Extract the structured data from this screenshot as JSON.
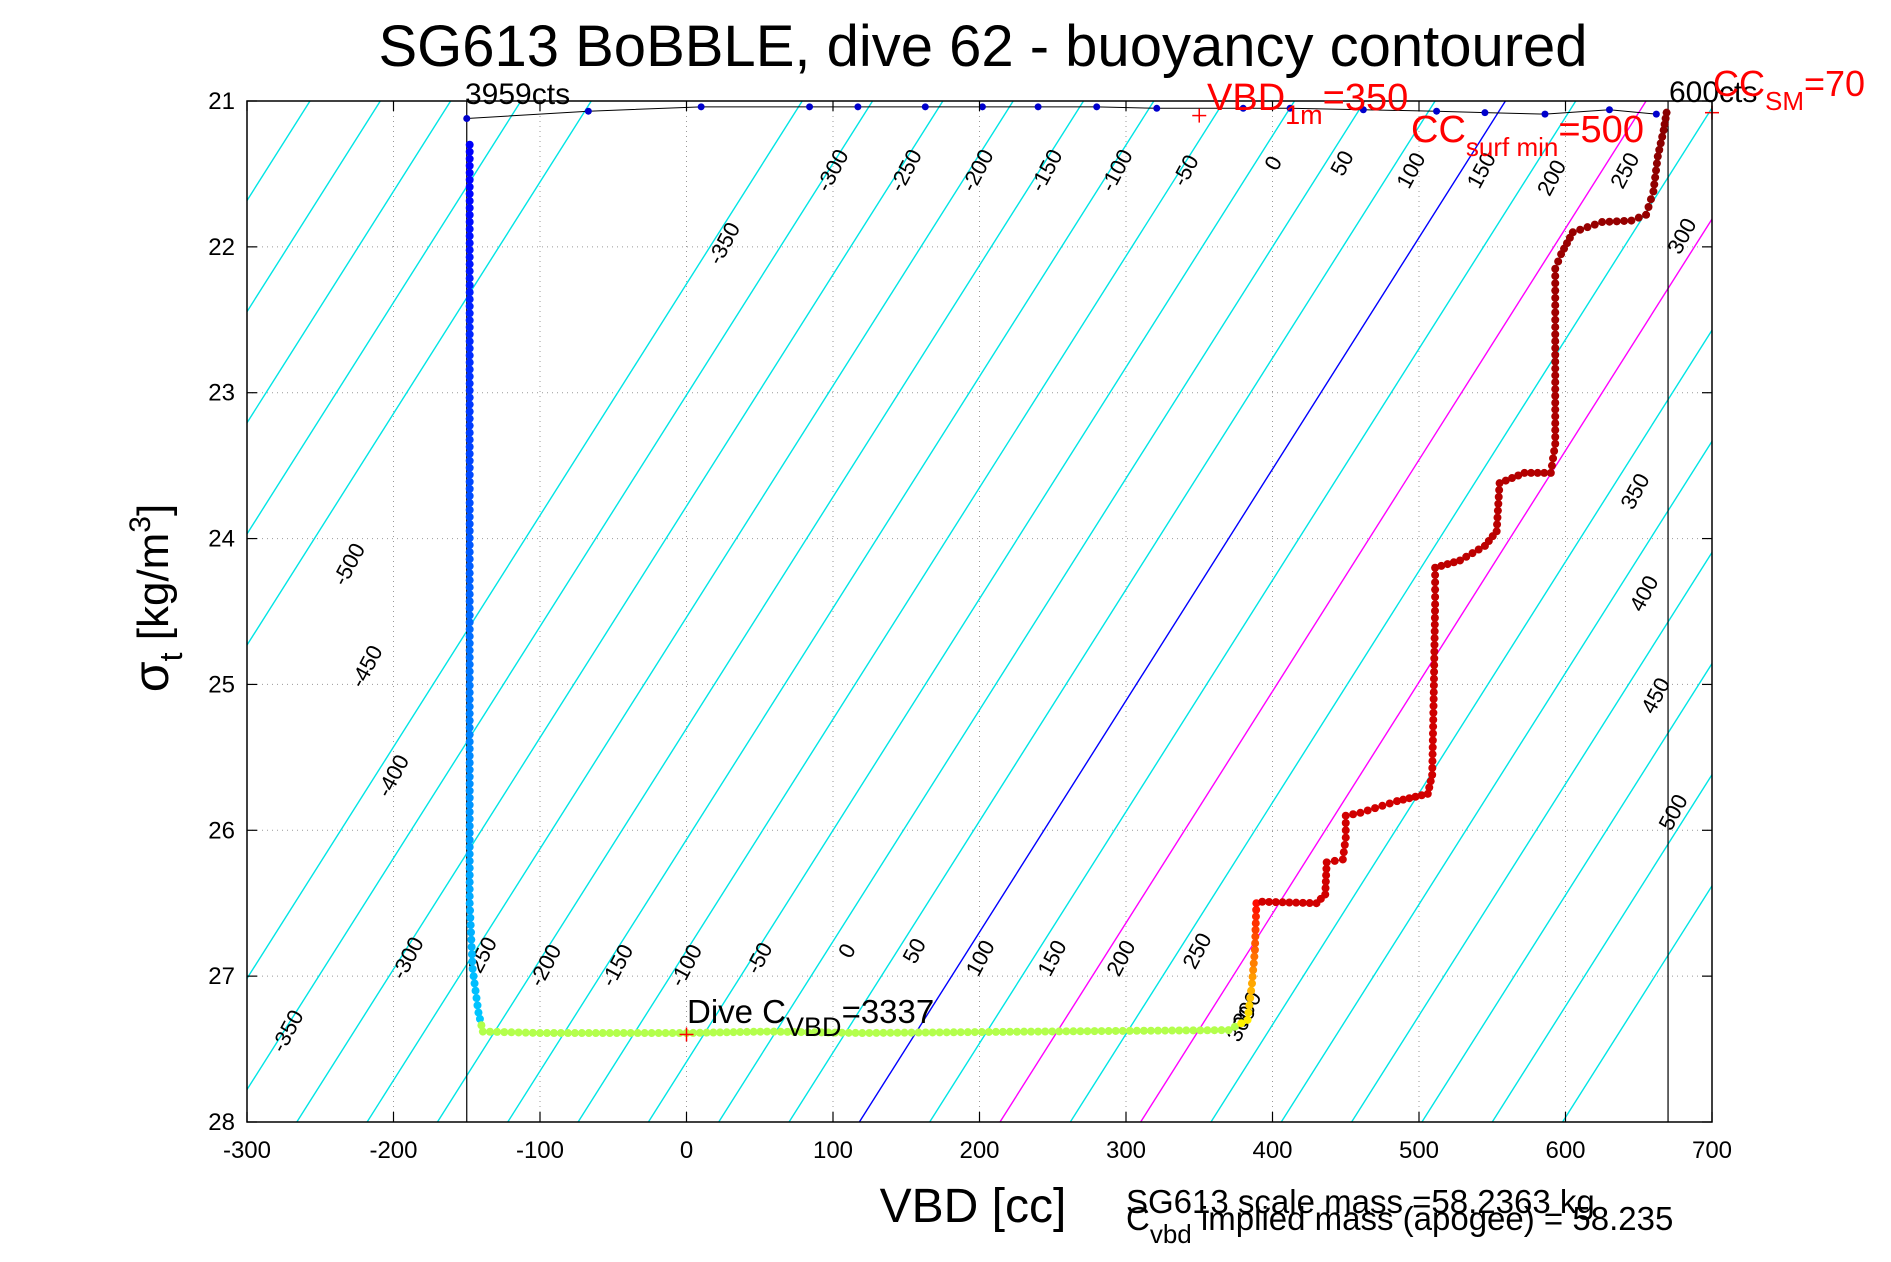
{
  "chart_data": {
    "type": "scatter",
    "title": "SG613 BoBBLE, dive 62 - buoyancy contoured",
    "xlabel": "VBD [cc]",
    "ylabel": {
      "base": "σ",
      "sub": "t",
      "bracket_open": " [kg/m",
      "sup": "3",
      "bracket_close": "]"
    },
    "xlim": [
      -300,
      700
    ],
    "ylim": [
      21,
      28
    ],
    "y_reversed": true,
    "grid": true,
    "xticks": [
      -300,
      -200,
      -100,
      0,
      100,
      200,
      300,
      400,
      500,
      600,
      700
    ],
    "yticks": [
      21,
      22,
      23,
      24,
      25,
      26,
      27,
      28
    ],
    "contours": {
      "levels": [
        -500,
        -450,
        -400,
        -350,
        -300,
        -250,
        -200,
        -150,
        -100,
        -50,
        0,
        50,
        100,
        150,
        200,
        250,
        300,
        350,
        400,
        450,
        500
      ],
      "colors": {
        "default": "#00e5e5",
        "zero": "#0000ff",
        "highlight": "#ff00ff"
      },
      "highlight_levels": [
        100,
        200
      ],
      "labels": [
        {
          "text": "-500",
          "x": -226,
          "y": 24.2
        },
        {
          "text": "-450",
          "x": -214,
          "y": 24.9
        },
        {
          "text": "-400",
          "x": -196,
          "y": 25.65
        },
        {
          "text": "-350",
          "x": -268,
          "y": 27.4
        },
        {
          "text": "-300",
          "x": -186,
          "y": 26.9
        },
        {
          "text": "-350",
          "x": 30,
          "y": 22.0
        },
        {
          "text": "-300",
          "x": 104,
          "y": 21.5
        },
        {
          "text": "-250",
          "x": 154,
          "y": 21.5
        },
        {
          "text": "-200",
          "x": 203,
          "y": 21.5
        },
        {
          "text": "-150",
          "x": 250,
          "y": 21.5
        },
        {
          "text": "-100",
          "x": 298,
          "y": 21.5
        },
        {
          "text": "-50",
          "x": 345,
          "y": 21.5
        },
        {
          "text": "0",
          "x": 405,
          "y": 21.45
        },
        {
          "text": "50",
          "x": 452,
          "y": 21.45
        },
        {
          "text": "100",
          "x": 499,
          "y": 21.5
        },
        {
          "text": "150",
          "x": 547,
          "y": 21.5
        },
        {
          "text": "200",
          "x": 595,
          "y": 21.55
        },
        {
          "text": "250",
          "x": 645,
          "y": 21.5
        },
        {
          "text": "300",
          "x": 684,
          "y": 21.95
        },
        {
          "text": "350",
          "x": 652,
          "y": 23.7
        },
        {
          "text": "400",
          "x": 658,
          "y": 24.4
        },
        {
          "text": "450",
          "x": 666,
          "y": 25.1
        },
        {
          "text": "500",
          "x": 678,
          "y": 25.9
        },
        {
          "text": "-250",
          "x": -136,
          "y": 26.9
        },
        {
          "text": "-200",
          "x": -92,
          "y": 26.95
        },
        {
          "text": "-150",
          "x": -43,
          "y": 26.95
        },
        {
          "text": "-100",
          "x": 4,
          "y": 26.95
        },
        {
          "text": "-50",
          "x": 54,
          "y": 26.9
        },
        {
          "text": "0",
          "x": 114,
          "y": 26.85
        },
        {
          "text": "50",
          "x": 160,
          "y": 26.85
        },
        {
          "text": "100",
          "x": 205,
          "y": 26.9
        },
        {
          "text": "150",
          "x": 254,
          "y": 26.9
        },
        {
          "text": "200",
          "x": 301,
          "y": 26.9
        },
        {
          "text": "250",
          "x": 353,
          "y": 26.85
        },
        {
          "text": "300",
          "x": 387,
          "y": 27.25
        },
        {
          "text": "300",
          "x": 383,
          "y": 27.35
        }
      ]
    },
    "vbd_limits": [
      -150,
      670
    ],
    "annotations": {
      "top_left_counts": "3959cts",
      "top_right_counts": "600cts",
      "vbd_1m": {
        "main": "VBD",
        "sub": "1m",
        "value": "=350"
      },
      "cc_surf_min": {
        "main": "CC",
        "sub": "surf min",
        "value": "=500"
      },
      "cc_sm": {
        "main": "CC",
        "sub": "SM",
        "value": "=70"
      },
      "dive_cvbd": {
        "main": "Dive C",
        "sub": "VBD",
        "value": "=3337"
      },
      "scale_mass": "SG613 scale mass =58.2363 kg",
      "implied_mass": {
        "main": "C",
        "sub": "vbd",
        "value": " implied mass (apogee) = 58.235"
      }
    },
    "red_markers": [
      {
        "x": 350,
        "y": 21.1
      },
      {
        "x": 700,
        "y": 21.08
      },
      {
        "x": 0,
        "y": 27.4
      }
    ],
    "series": [
      {
        "role": "descent",
        "color": "#0000cc",
        "points": [
          [
            -150,
            21.12
          ],
          [
            -67,
            21.07
          ],
          [
            10,
            21.04
          ],
          [
            84,
            21.04
          ],
          [
            117,
            21.04
          ],
          [
            163,
            21.04
          ],
          [
            202,
            21.04
          ],
          [
            240,
            21.04
          ],
          [
            280,
            21.04
          ],
          [
            321,
            21.05
          ],
          [
            380,
            21.05
          ],
          [
            412,
            21.05
          ],
          [
            462,
            21.06
          ],
          [
            512,
            21.07
          ],
          [
            545,
            21.08
          ],
          [
            586,
            21.09
          ],
          [
            630,
            21.06
          ],
          [
            662,
            21.09
          ]
        ]
      },
      {
        "role": "ascent",
        "profile": [
          [
            -148,
            21.3
          ],
          [
            -148,
            26.5
          ],
          [
            -146,
            26.95
          ],
          [
            -142,
            27.25
          ],
          [
            -139,
            27.38
          ],
          [
            -100,
            27.39
          ],
          [
            0,
            27.39
          ],
          [
            55,
            27.38
          ],
          [
            120,
            27.39
          ],
          [
            240,
            27.38
          ],
          [
            370,
            27.37
          ],
          [
            383,
            27.3
          ],
          [
            386,
            27.05
          ],
          [
            388,
            26.82
          ],
          [
            389,
            26.5
          ],
          [
            393,
            26.49
          ],
          [
            430,
            26.5
          ],
          [
            436,
            26.44
          ],
          [
            437,
            26.22
          ],
          [
            448,
            26.2
          ],
          [
            450,
            26.05
          ],
          [
            450,
            25.9
          ],
          [
            460,
            25.88
          ],
          [
            485,
            25.8
          ],
          [
            506,
            25.75
          ],
          [
            509,
            25.62
          ],
          [
            510,
            25.1
          ],
          [
            511,
            24.45
          ],
          [
            511,
            24.2
          ],
          [
            528,
            24.15
          ],
          [
            545,
            24.05
          ],
          [
            553,
            23.95
          ],
          [
            555,
            23.62
          ],
          [
            572,
            23.55
          ],
          [
            590,
            23.55
          ],
          [
            593,
            23.35
          ],
          [
            593,
            22.6
          ],
          [
            593,
            22.15
          ],
          [
            597,
            22.05
          ],
          [
            605,
            21.9
          ],
          [
            625,
            21.83
          ],
          [
            645,
            21.82
          ],
          [
            655,
            21.78
          ],
          [
            660,
            21.62
          ],
          [
            663,
            21.38
          ],
          [
            667,
            21.2
          ],
          [
            669,
            21.08
          ]
        ]
      }
    ]
  }
}
